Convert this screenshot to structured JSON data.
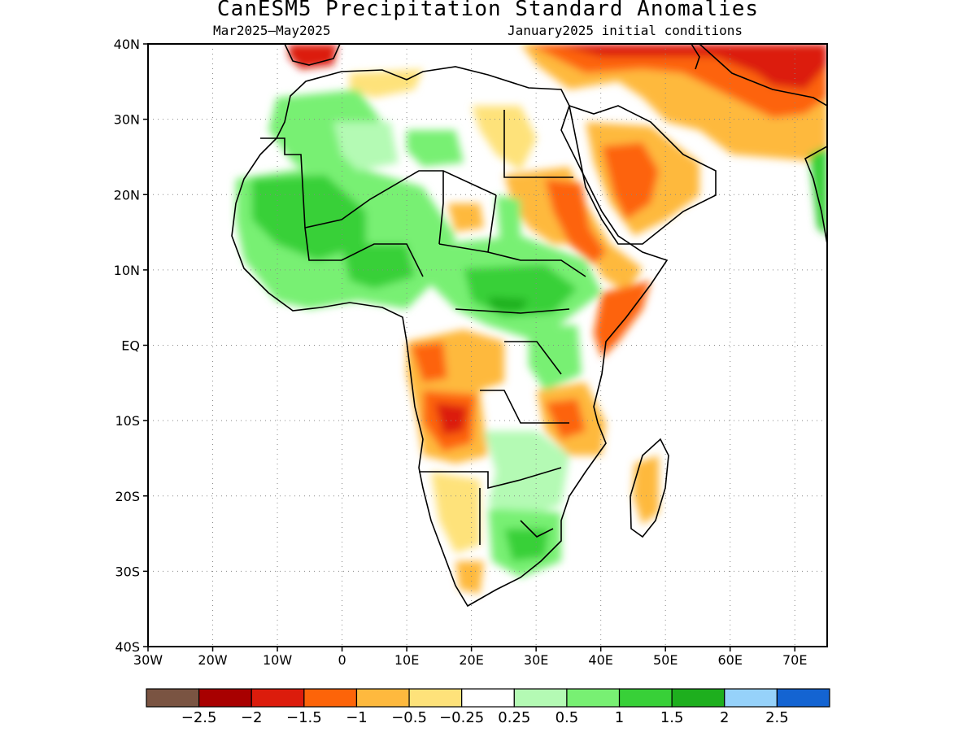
{
  "title": "CanESM5 Precipitation Standard Anomalies",
  "subtitle_left": "Mar2025—May2025",
  "subtitle_right": "January2025 initial conditions",
  "map": {
    "lon_range": [
      -30,
      75
    ],
    "lat_range": [
      -40,
      40
    ],
    "x_ticks": [
      "30W",
      "20W",
      "10W",
      "0",
      "10E",
      "20E",
      "30E",
      "40E",
      "50E",
      "60E",
      "70E"
    ],
    "y_ticks": [
      "40N",
      "30N",
      "20N",
      "10N",
      "EQ",
      "10S",
      "20S",
      "30S",
      "40S"
    ],
    "grid": true,
    "region": "Africa",
    "anomaly_regions": [
      {
        "name": "Sahel / West Africa",
        "category": "above",
        "level": "0.5 to 1.5"
      },
      {
        "name": "Central Africa / South Sudan",
        "category": "above",
        "level": "0.5 to 1.5"
      },
      {
        "name": "Northwest Africa coast",
        "category": "above",
        "level": "0.5 to 1"
      },
      {
        "name": "Southeast Africa",
        "category": "above",
        "level": "0.5 to 1"
      },
      {
        "name": "Middle East / Iran",
        "category": "below",
        "level": "-0.5 to -2"
      },
      {
        "name": "Arabian Peninsula",
        "category": "below",
        "level": "-0.5 to -1.5"
      },
      {
        "name": "Angola",
        "category": "below",
        "level": "-0.5 to -2"
      },
      {
        "name": "Ethiopian Highlands / Sudan",
        "category": "below",
        "level": "-0.5 to -1.5"
      },
      {
        "name": "Somalia / Kenya coast",
        "category": "below",
        "level": "-0.5 to -1"
      },
      {
        "name": "Tanzania / Malawi",
        "category": "below",
        "level": "-0.5 to -1.5"
      },
      {
        "name": "Madagascar",
        "category": "below",
        "level": "-0.5 to -1"
      },
      {
        "name": "Namibia / Botswana",
        "category": "below",
        "level": "-0.25 to -0.5"
      }
    ]
  },
  "colorbar": {
    "colors": [
      "#7a5442",
      "#a80000",
      "#dc1c0c",
      "#fd6409",
      "#feb93e",
      "#fee27a",
      "#ffffff",
      "#b4fab4",
      "#78f073",
      "#38d038",
      "#1eaf1e",
      "#96d2fa",
      "#1464d2"
    ],
    "labels": [
      "−2.5",
      "−2",
      "−1.5",
      "−1",
      "−0.5",
      "−0.25",
      "0.25",
      "0.5",
      "1",
      "1.5",
      "2",
      "2.5"
    ]
  }
}
